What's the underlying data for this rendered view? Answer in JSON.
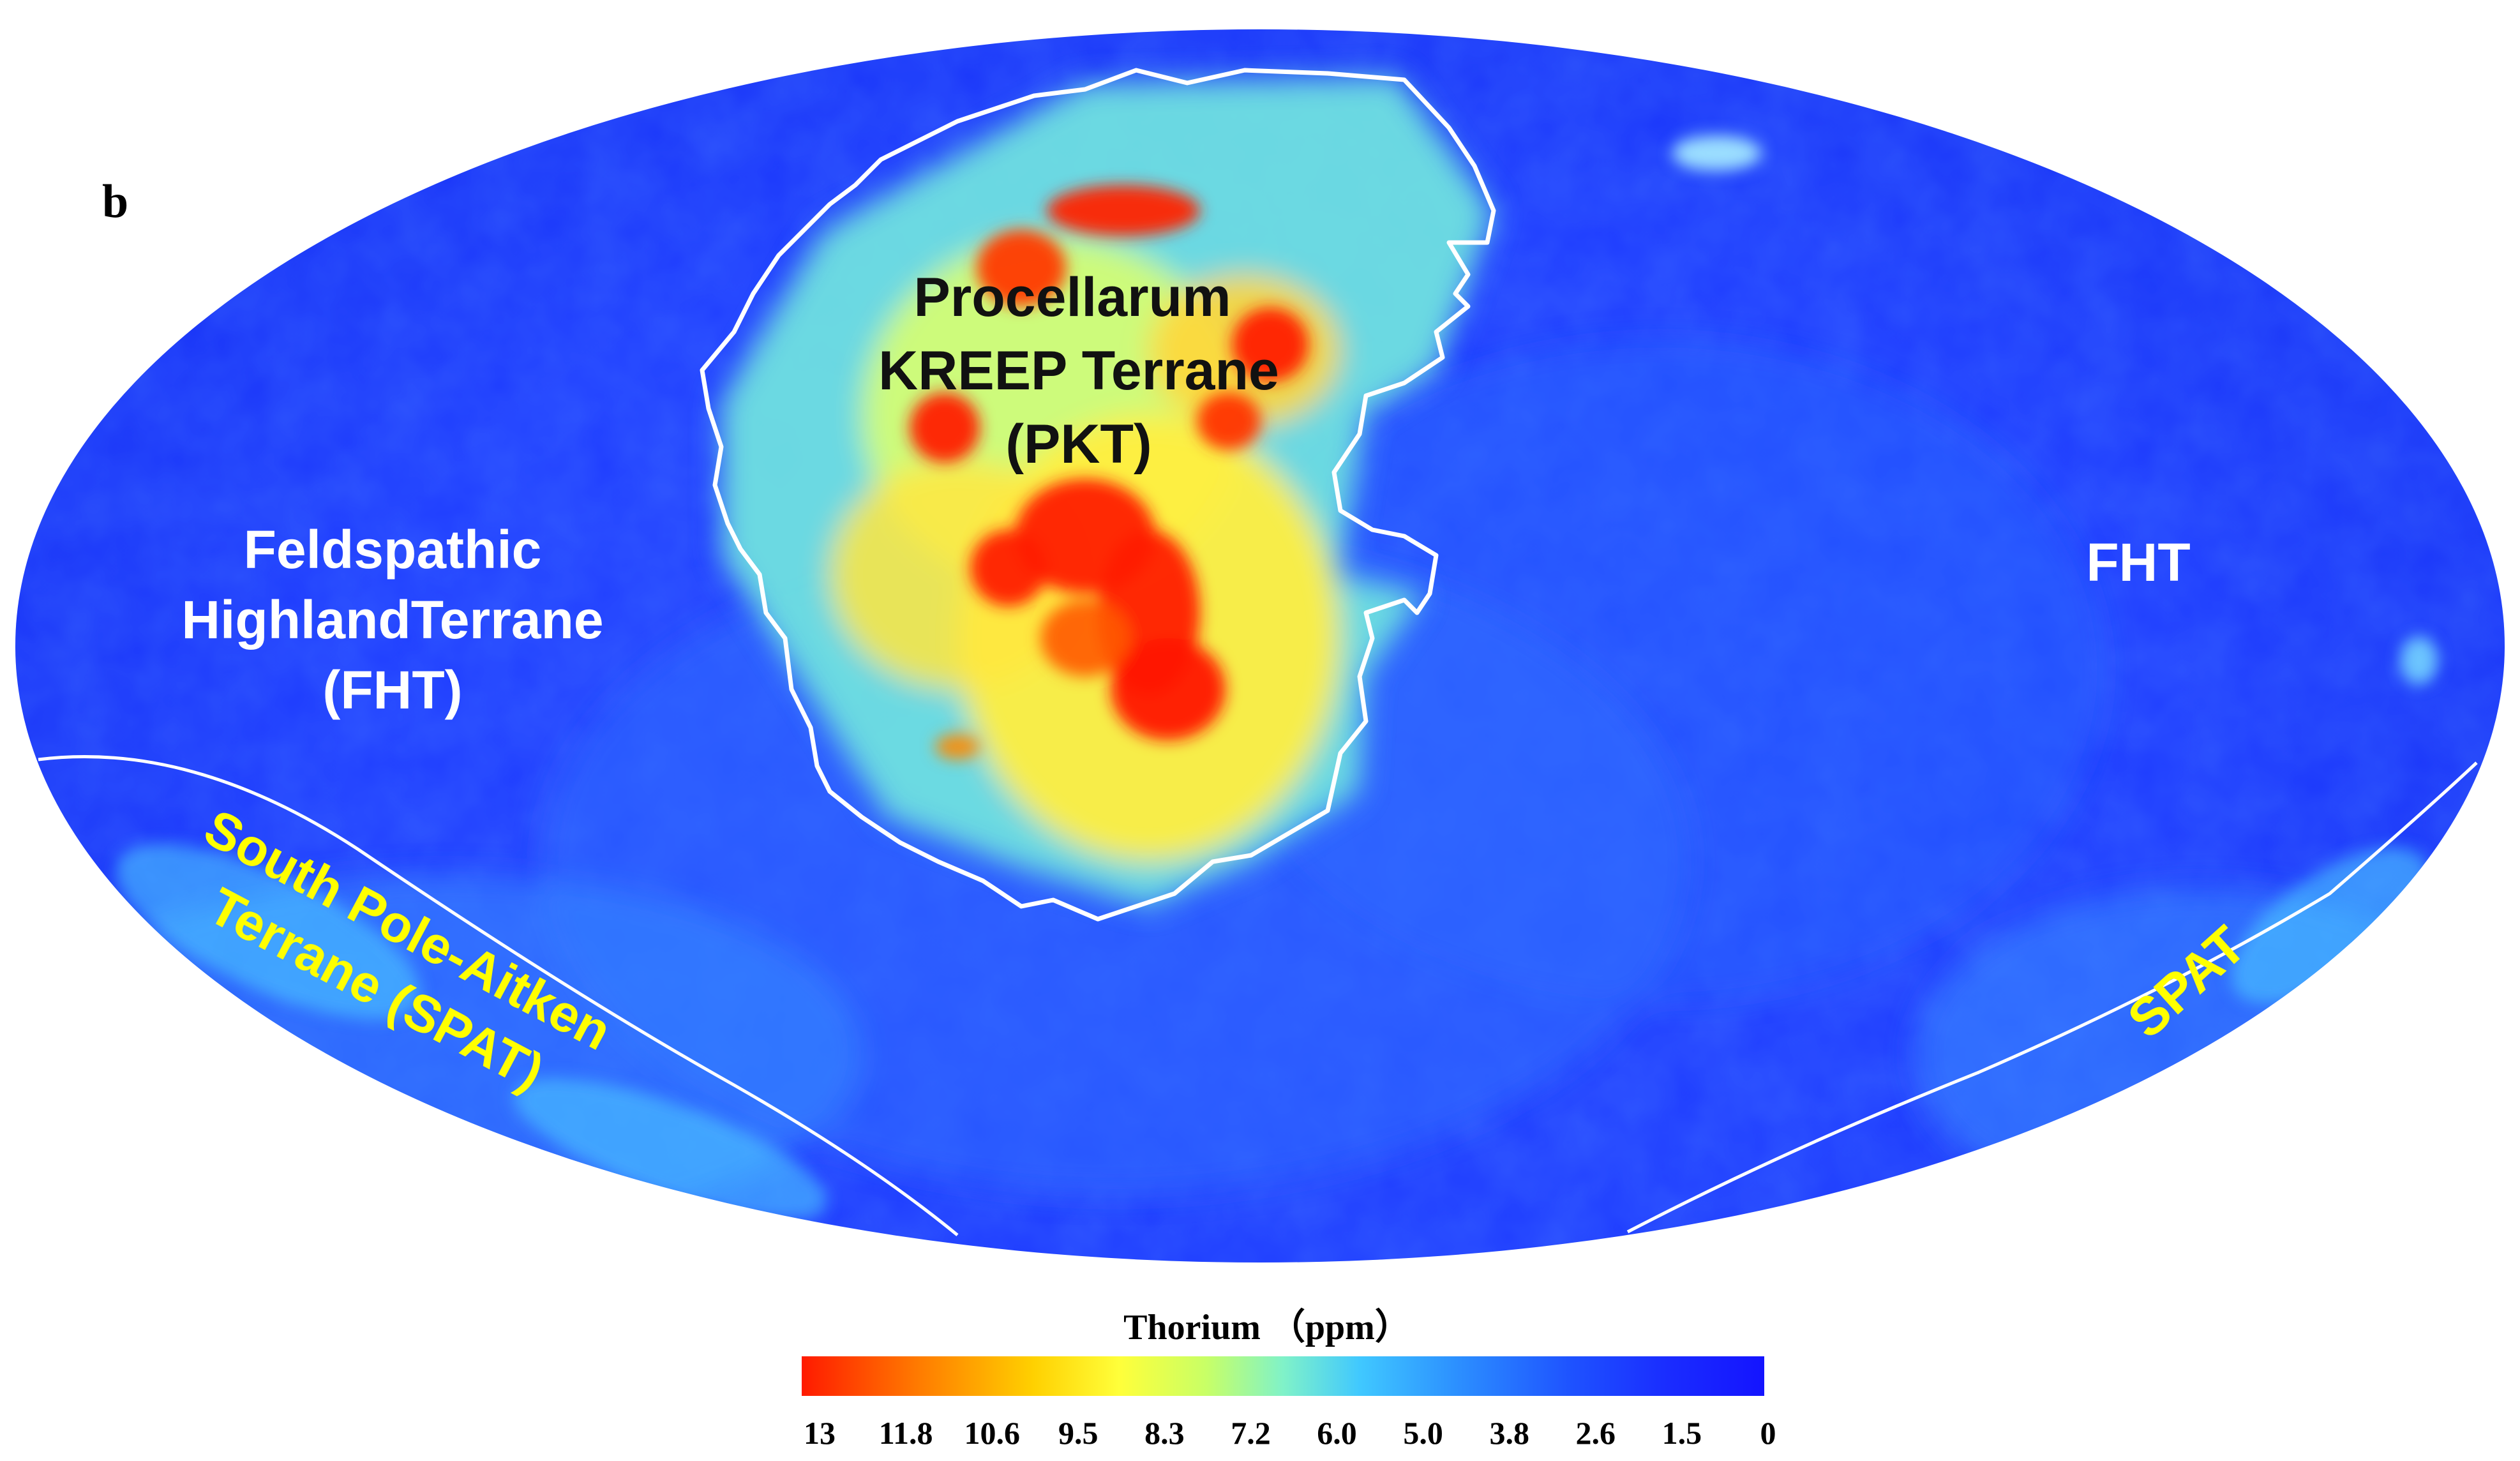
{
  "panel_label": "b",
  "colors": {
    "fht_label": "#ffffff",
    "pkt_label": "#111111",
    "spat_label": "#ffff00",
    "boundary": "#ffffff",
    "colormap": [
      "#ff1a00",
      "#ff8a00",
      "#ffd800",
      "#ffff40",
      "#b8ff70",
      "#7ef0c8",
      "#3fc8ff",
      "#2a8cff",
      "#1e55ff",
      "#1b2cff",
      "#1414ff"
    ]
  },
  "regions": {
    "pkt": {
      "line1": "Procellarum",
      "line2": "KREEP Terrane",
      "line3": "(PKT)"
    },
    "fht_west": {
      "line1": "Feldspathic",
      "line2": "HighlandTerrane",
      "line3": "(FHT)"
    },
    "fht_east": {
      "label": "FHT"
    },
    "spat_west": {
      "line1": "South Pole-Aitken",
      "line2": "Terrane (SPAT)"
    },
    "spat_east": {
      "label": "SPAT"
    }
  },
  "colorbar": {
    "title": "Thorium （ppm）",
    "ticks": [
      "13",
      "11.8",
      "10.6",
      "9.5",
      "8.3",
      "7.2",
      "6.0",
      "5.0",
      "3.8",
      "2.6",
      "1.5",
      "0"
    ]
  }
}
